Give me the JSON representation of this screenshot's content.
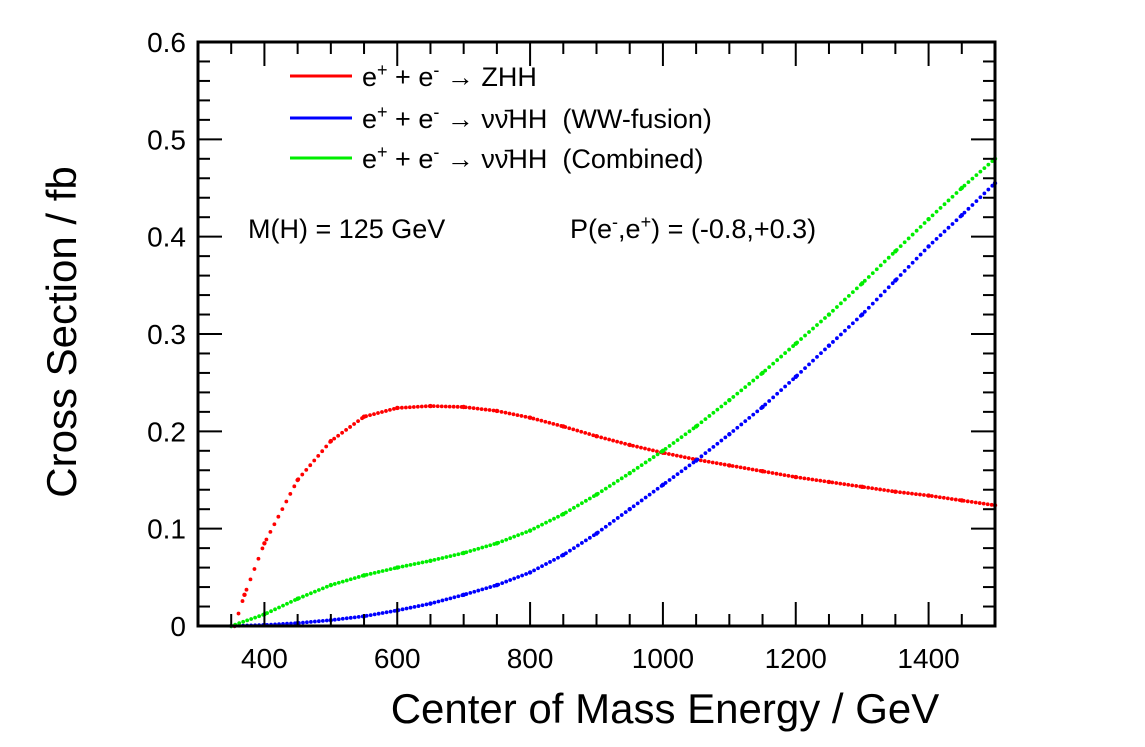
{
  "chart_data": {
    "type": "scatter",
    "title": "",
    "xlabel": "Center of Mass Energy / GeV",
    "ylabel": "Cross Section / fb",
    "xlim": [
      300,
      1500
    ],
    "ylim": [
      0,
      0.6
    ],
    "x_ticks": [
      "400",
      "600",
      "800",
      "1000",
      "1200",
      "1400"
    ],
    "y_ticks": [
      "0",
      "0.1",
      "0.2",
      "0.3",
      "0.4",
      "0.5",
      "0.6"
    ],
    "grid": false,
    "legend_position": "top-left",
    "annotation": {
      "mass": "M(H) = 125 GeV",
      "polarization_prefix": "P(e",
      "polarization_mid": ",e",
      "polarization_suffix": ") = (-0.8,+0.3)",
      "minus": "-",
      "plus": "+"
    },
    "series": [
      {
        "name": "e+ + e- → ZHH",
        "legend_parts": {
          "e": "e",
          "plus": "+",
          "minus": "-",
          "op": " + ",
          "arrow": " → ",
          "final": "ZHH",
          "suffix": ""
        },
        "color": "#ff0000",
        "x": [
          355,
          370,
          400,
          450,
          500,
          550,
          600,
          650,
          700,
          750,
          800,
          850,
          900,
          950,
          1000,
          1050,
          1100,
          1150,
          1200,
          1250,
          1300,
          1350,
          1400,
          1450,
          1500
        ],
        "y": [
          0.0,
          0.032,
          0.085,
          0.15,
          0.19,
          0.215,
          0.224,
          0.226,
          0.225,
          0.221,
          0.214,
          0.205,
          0.195,
          0.186,
          0.178,
          0.171,
          0.165,
          0.159,
          0.153,
          0.148,
          0.143,
          0.138,
          0.134,
          0.129,
          0.124
        ]
      },
      {
        "name": "e+ + e- → νν̄HH (WW-fusion)",
        "legend_parts": {
          "e": "e",
          "plus": "+",
          "minus": "-",
          "op": " + ",
          "arrow": " → ",
          "final": "νν̄HH",
          "suffix": "  (WW-fusion)"
        },
        "color": "#0000ff",
        "x": [
          350,
          400,
          450,
          500,
          550,
          600,
          650,
          700,
          750,
          800,
          850,
          900,
          950,
          1000,
          1050,
          1100,
          1150,
          1200,
          1250,
          1300,
          1350,
          1400,
          1450,
          1500
        ],
        "y": [
          0.0,
          0.001,
          0.003,
          0.006,
          0.01,
          0.016,
          0.023,
          0.032,
          0.042,
          0.055,
          0.073,
          0.095,
          0.12,
          0.145,
          0.17,
          0.197,
          0.225,
          0.256,
          0.288,
          0.32,
          0.355,
          0.39,
          0.422,
          0.455
        ]
      },
      {
        "name": "e+ + e- → νν̄HH (Combined)",
        "legend_parts": {
          "e": "e",
          "plus": "+",
          "minus": "-",
          "op": " + ",
          "arrow": " → ",
          "final": "νν̄HH",
          "suffix": "  (Combined)"
        },
        "color": "#00ee00",
        "x": [
          350,
          400,
          450,
          500,
          550,
          600,
          650,
          700,
          750,
          800,
          850,
          900,
          950,
          1000,
          1050,
          1100,
          1150,
          1200,
          1250,
          1300,
          1350,
          1400,
          1450,
          1500
        ],
        "y": [
          0.0,
          0.012,
          0.028,
          0.042,
          0.052,
          0.06,
          0.067,
          0.075,
          0.085,
          0.098,
          0.115,
          0.135,
          0.157,
          0.18,
          0.205,
          0.232,
          0.26,
          0.29,
          0.32,
          0.352,
          0.385,
          0.418,
          0.45,
          0.48
        ]
      }
    ]
  }
}
